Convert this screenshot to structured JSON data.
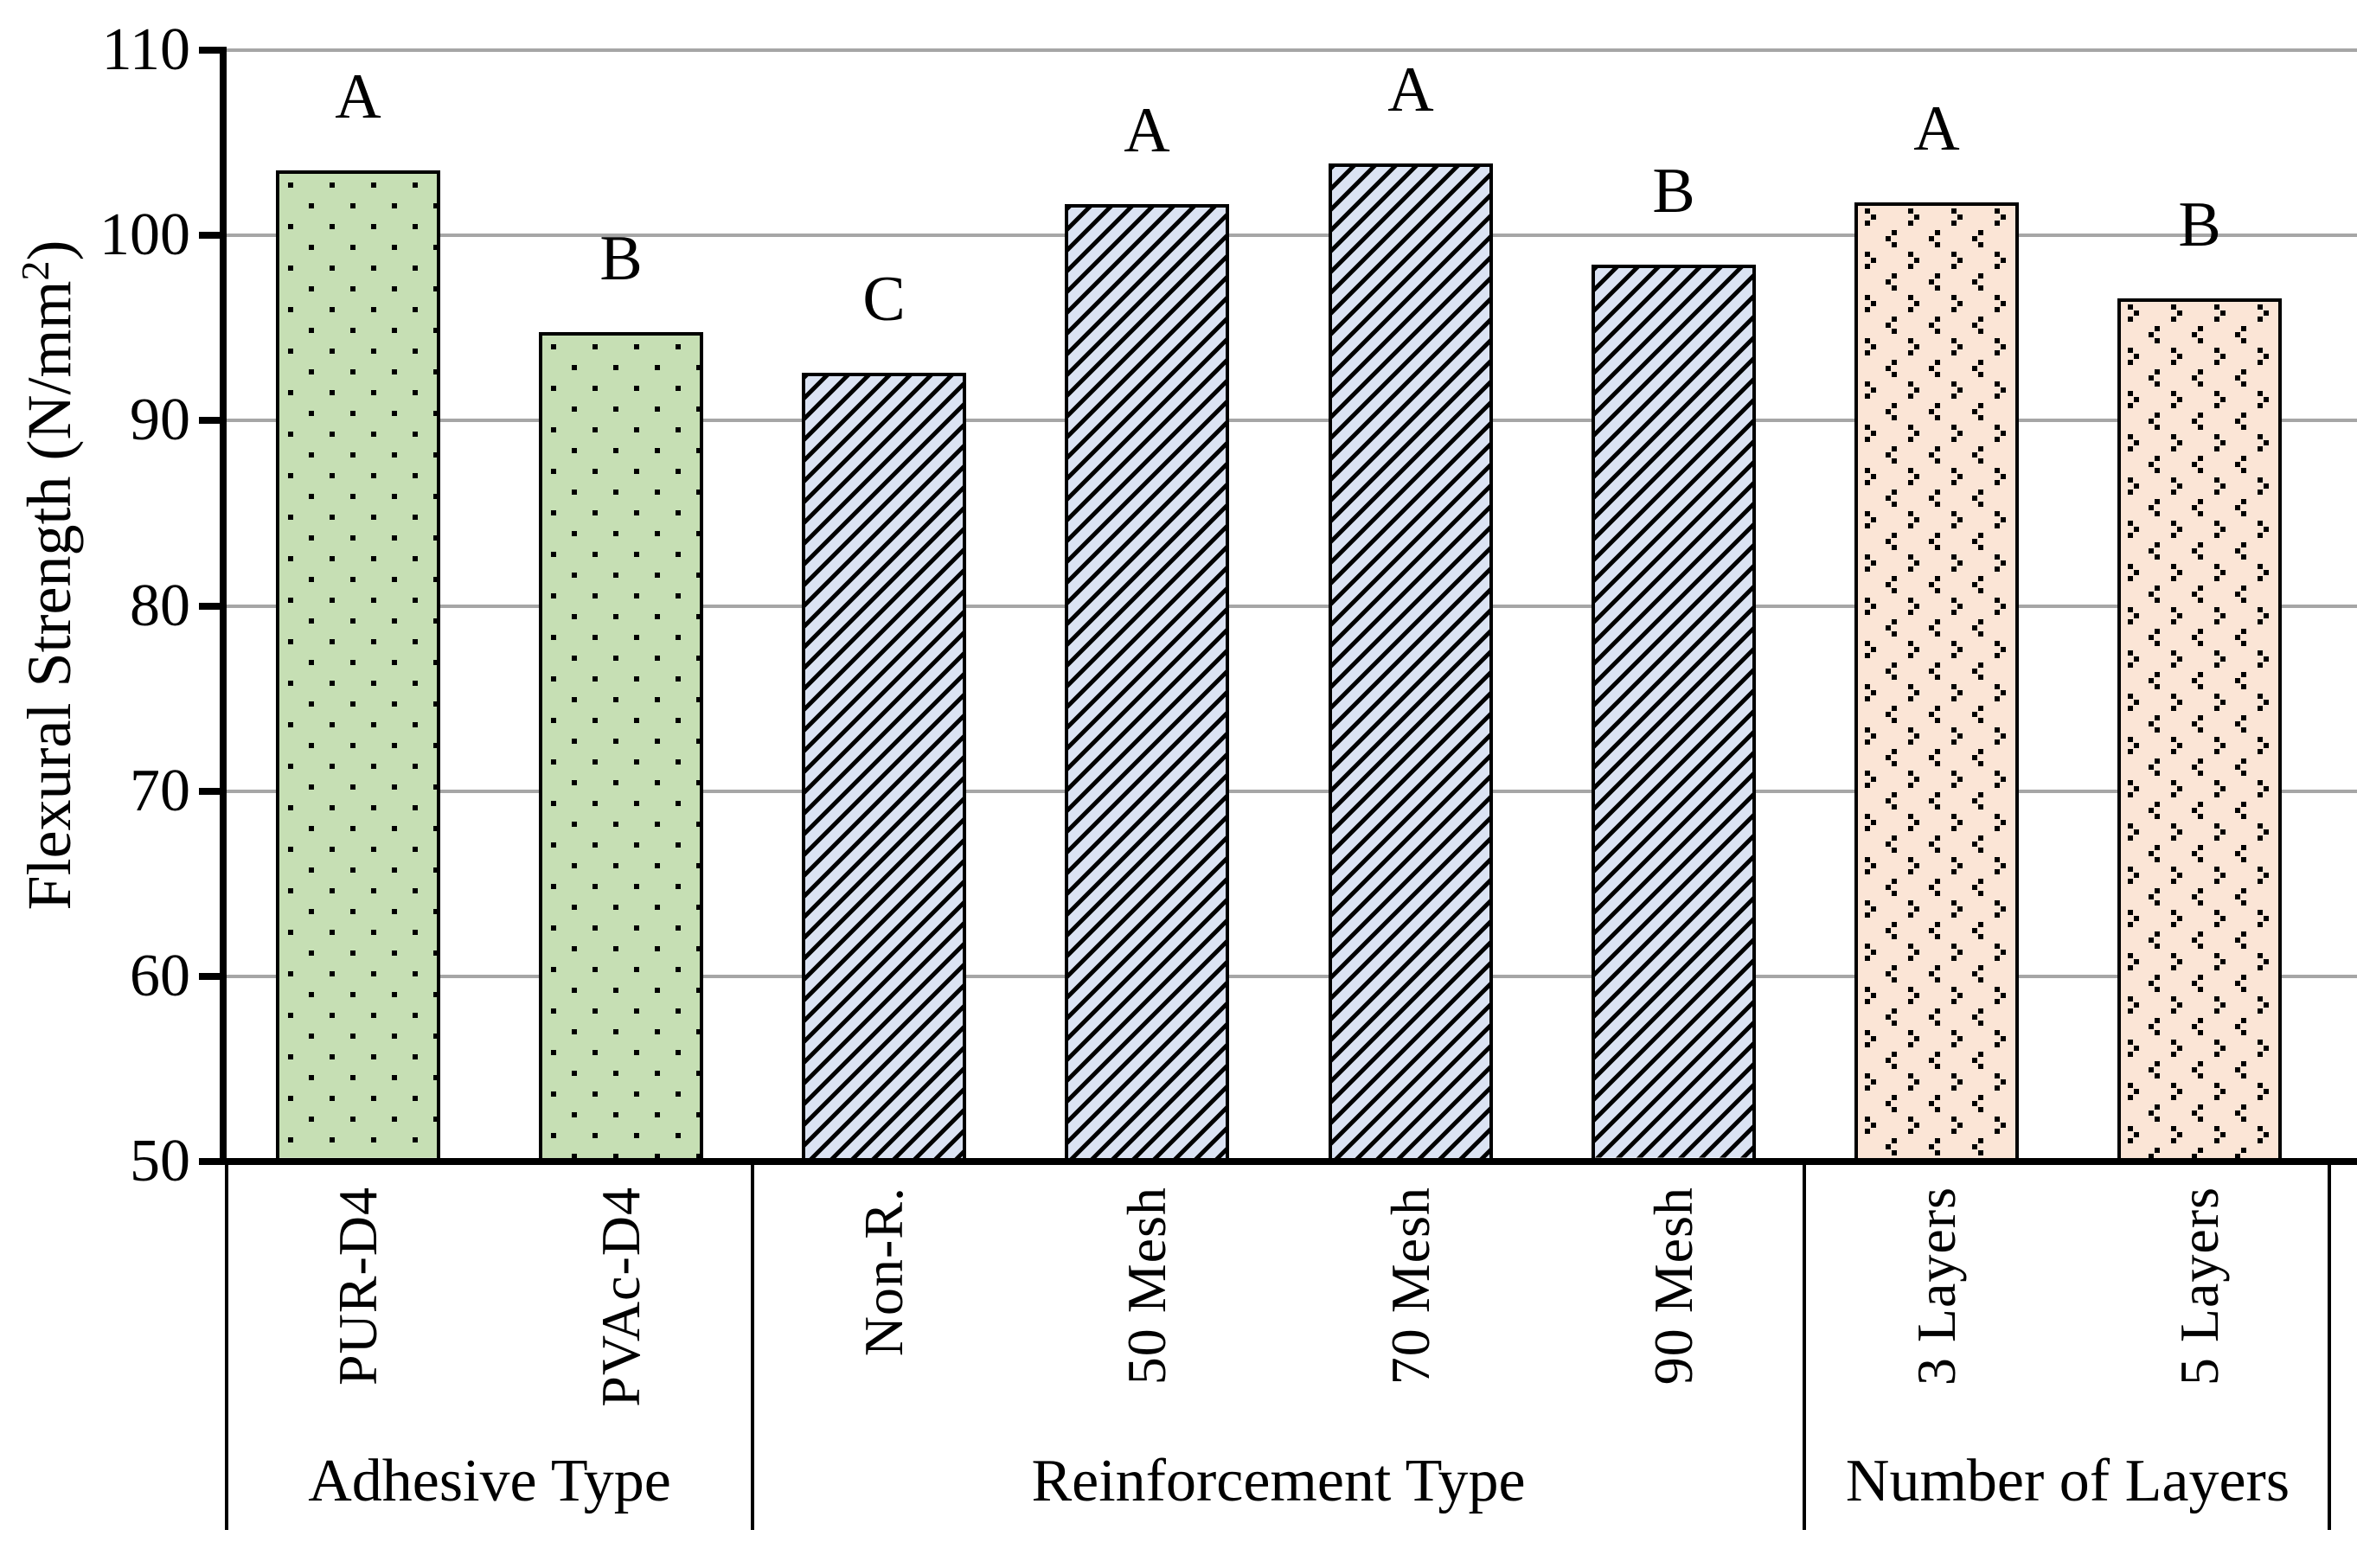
{
  "chart_data": {
    "type": "bar",
    "title": "",
    "xlabel": "",
    "ylabel": "Flexural Strength (N/mm2)",
    "ylim": [
      50,
      110
    ],
    "ytick_step": 10,
    "ytick_labels": [
      "110",
      "100",
      "90",
      "80",
      "70",
      "60",
      "50"
    ],
    "grid": "horizontal-gray",
    "legend": "none",
    "categories": [
      "PUR-D4",
      "PVAc-D4",
      "Non-R.",
      "50 Mesh",
      "70 Mesh",
      "90 Mesh",
      "3 Layers",
      "5 Layers"
    ],
    "values": [
      103.5,
      94.8,
      92.6,
      101.7,
      103.9,
      98.4,
      101.8,
      96.6
    ],
    "significance_letters": [
      "A",
      "B",
      "C",
      "A",
      "A",
      "B",
      "A",
      "B"
    ],
    "groups": [
      {
        "label": "Adhesive Type",
        "categories": [
          "PUR-D4",
          "PVAc-D4"
        ],
        "pattern": "square-dots",
        "fill": "#c6dfb4"
      },
      {
        "label": "Reinforcement Type",
        "categories": [
          "Non-R.",
          "50 Mesh",
          "70 Mesh",
          "90 Mesh"
        ],
        "pattern": "diagonal-up-hatch",
        "fill": "#dbe3f3"
      },
      {
        "label": "Number of Layers",
        "categories": [
          "3 Layers",
          "5 Layers"
        ],
        "pattern": "divot-chevrons",
        "fill": "#fbe5d6"
      }
    ]
  },
  "axis": {
    "y": {
      "title_main": "Flexural Strength (N/mm",
      "title_sup": "2",
      "title_close": ")"
    }
  },
  "colors": {
    "green_fill": "#c6dfb4",
    "blue_fill": "#dbe3f3",
    "peach_fill": "#fbe5d6",
    "pattern_ink": "#000000",
    "gridline": "#a6a6a6",
    "axis": "#000000"
  }
}
